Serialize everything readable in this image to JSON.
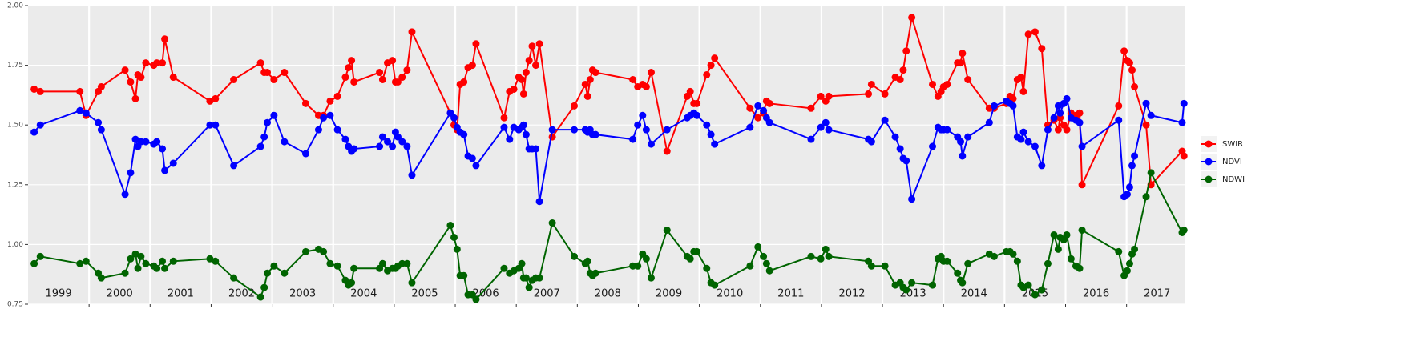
{
  "chart_data": {
    "type": "line",
    "legend_position": "right",
    "grid": true,
    "background": "#ebebeb",
    "xlim": [
      1999.0,
      2017.95
    ],
    "xticks": [
      {
        "value": 1999.5,
        "label": "1999"
      },
      {
        "value": 2000.5,
        "label": "2000"
      },
      {
        "value": 2001.5,
        "label": "2001"
      },
      {
        "value": 2002.5,
        "label": "2002"
      },
      {
        "value": 2003.5,
        "label": "2003"
      },
      {
        "value": 2004.5,
        "label": "2004"
      },
      {
        "value": 2005.5,
        "label": "2005"
      },
      {
        "value": 2006.5,
        "label": "2006"
      },
      {
        "value": 2007.5,
        "label": "2007"
      },
      {
        "value": 2008.5,
        "label": "2008"
      },
      {
        "value": 2009.5,
        "label": "2009"
      },
      {
        "value": 2010.5,
        "label": "2010"
      },
      {
        "value": 2011.5,
        "label": "2011"
      },
      {
        "value": 2012.5,
        "label": "2012"
      },
      {
        "value": 2013.5,
        "label": "2013"
      },
      {
        "value": 2014.5,
        "label": "2014"
      },
      {
        "value": 2015.5,
        "label": "2015"
      },
      {
        "value": 2016.5,
        "label": "2016"
      },
      {
        "value": 2017.5,
        "label": "2017"
      }
    ],
    "xgrid": [
      2000,
      2001,
      2002,
      2003,
      2004,
      2005,
      2006,
      2007,
      2008,
      2009,
      2010,
      2011,
      2012,
      2013,
      2014,
      2015,
      2016,
      2017
    ],
    "ylim": [
      0.75,
      2.0
    ],
    "yticks": [
      {
        "value": 0.75,
        "label": "0.75"
      },
      {
        "value": 1.0,
        "label": "1.00"
      },
      {
        "value": 1.25,
        "label": "1.25"
      },
      {
        "value": 1.5,
        "label": "1.50"
      },
      {
        "value": 1.75,
        "label": "1.75"
      },
      {
        "value": 2.0,
        "label": "2.00"
      }
    ],
    "x": [
      1999.1,
      1999.2,
      1999.85,
      1999.95,
      2000.15,
      2000.2,
      2000.59,
      2000.68,
      2000.76,
      2000.8,
      2000.85,
      2000.93,
      2001.06,
      2001.11,
      2001.2,
      2001.24,
      2001.38,
      2001.98,
      2002.07,
      2002.37,
      2002.81,
      2002.87,
      2002.92,
      2003.03,
      2003.2,
      2003.55,
      2003.76,
      2003.84,
      2003.95,
      2004.07,
      2004.2,
      2004.25,
      2004.3,
      2004.34,
      2004.76,
      2004.81,
      2004.89,
      2004.97,
      2005.02,
      2005.06,
      2005.13,
      2005.21,
      2005.29,
      2005.92,
      2005.98,
      2006.03,
      2006.08,
      2006.14,
      2006.21,
      2006.28,
      2006.34,
      2006.8,
      2006.89,
      2006.96,
      2007.04,
      2007.09,
      2007.12,
      2007.16,
      2007.21,
      2007.26,
      2007.32,
      2007.38,
      2007.59,
      2007.95,
      2008.13,
      2008.17,
      2008.21,
      2008.25,
      2008.3,
      2008.91,
      2008.99,
      2009.07,
      2009.13,
      2009.21,
      2009.47,
      2009.8,
      2009.85,
      2009.91,
      2009.96,
      2010.12,
      2010.19,
      2010.25,
      2010.83,
      2010.96,
      2011.05,
      2011.1,
      2011.15,
      2011.83,
      2011.99,
      2012.07,
      2012.12,
      2012.77,
      2012.82,
      2013.04,
      2013.21,
      2013.29,
      2013.34,
      2013.39,
      2013.48,
      2013.82,
      2013.91,
      2013.96,
      2014.0,
      2014.06,
      2014.23,
      2014.28,
      2014.31,
      2014.4,
      2014.75,
      2014.83,
      2015.03,
      2015.09,
      2015.14,
      2015.21,
      2015.27,
      2015.31,
      2015.39,
      2015.5,
      2015.61,
      2015.71,
      2015.81,
      2015.88,
      2015.91,
      2015.97,
      2016.02,
      2016.09,
      2016.17,
      2016.23,
      2016.27,
      2016.87,
      2016.96,
      2017.01,
      2017.05,
      2017.09,
      2017.13,
      2017.32,
      2017.4,
      2017.91,
      2017.94
    ],
    "series": [
      {
        "name": "SWIR",
        "color": "#ff0000",
        "values": [
          1.65,
          1.64,
          1.64,
          1.54,
          1.64,
          1.66,
          1.73,
          1.68,
          1.61,
          1.71,
          1.7,
          1.76,
          1.75,
          1.76,
          1.76,
          1.86,
          1.7,
          1.6,
          1.61,
          1.69,
          1.76,
          1.72,
          1.72,
          1.69,
          1.72,
          1.59,
          1.54,
          1.54,
          1.6,
          1.62,
          1.7,
          1.74,
          1.77,
          1.68,
          1.72,
          1.69,
          1.76,
          1.77,
          1.68,
          1.68,
          1.7,
          1.73,
          1.89,
          1.55,
          1.5,
          1.48,
          1.67,
          1.68,
          1.74,
          1.75,
          1.84,
          1.53,
          1.64,
          1.65,
          1.7,
          1.69,
          1.63,
          1.72,
          1.77,
          1.83,
          1.75,
          1.84,
          1.45,
          1.58,
          1.67,
          1.62,
          1.69,
          1.73,
          1.72,
          1.69,
          1.66,
          1.67,
          1.66,
          1.72,
          1.39,
          1.62,
          1.64,
          1.59,
          1.59,
          1.71,
          1.75,
          1.78,
          1.57,
          1.53,
          1.55,
          1.6,
          1.59,
          1.57,
          1.62,
          1.6,
          1.62,
          1.63,
          1.67,
          1.63,
          1.7,
          1.69,
          1.73,
          1.81,
          1.95,
          1.67,
          1.62,
          1.64,
          1.66,
          1.67,
          1.76,
          1.76,
          1.8,
          1.69,
          1.57,
          1.57,
          1.59,
          1.62,
          1.61,
          1.69,
          1.7,
          1.64,
          1.88,
          1.89,
          1.82,
          1.5,
          1.52,
          1.48,
          1.53,
          1.5,
          1.48,
          1.55,
          1.54,
          1.55,
          1.25,
          1.58,
          1.81,
          1.77,
          1.76,
          1.73,
          1.66,
          1.5,
          1.25,
          1.39,
          1.37
        ]
      },
      {
        "name": "NDVI",
        "color": "#0000ff",
        "values": [
          1.47,
          1.5,
          1.56,
          1.55,
          1.51,
          1.48,
          1.21,
          1.3,
          1.44,
          1.41,
          1.43,
          1.43,
          1.42,
          1.43,
          1.4,
          1.31,
          1.34,
          1.5,
          1.5,
          1.33,
          1.41,
          1.45,
          1.51,
          1.54,
          1.43,
          1.38,
          1.48,
          1.53,
          1.54,
          1.48,
          1.44,
          1.41,
          1.39,
          1.4,
          1.41,
          1.45,
          1.43,
          1.41,
          1.47,
          1.45,
          1.43,
          1.41,
          1.29,
          1.55,
          1.53,
          1.49,
          1.47,
          1.46,
          1.37,
          1.36,
          1.33,
          1.49,
          1.44,
          1.49,
          1.48,
          1.49,
          1.5,
          1.46,
          1.4,
          1.4,
          1.4,
          1.18,
          1.48,
          1.48,
          1.48,
          1.47,
          1.48,
          1.46,
          1.46,
          1.44,
          1.5,
          1.54,
          1.48,
          1.42,
          1.48,
          1.53,
          1.54,
          1.55,
          1.54,
          1.5,
          1.46,
          1.42,
          1.49,
          1.58,
          1.56,
          1.53,
          1.51,
          1.44,
          1.49,
          1.51,
          1.48,
          1.44,
          1.43,
          1.52,
          1.45,
          1.4,
          1.36,
          1.35,
          1.19,
          1.41,
          1.49,
          1.48,
          1.48,
          1.48,
          1.45,
          1.43,
          1.37,
          1.45,
          1.51,
          1.58,
          1.6,
          1.59,
          1.58,
          1.45,
          1.44,
          1.47,
          1.43,
          1.41,
          1.33,
          1.48,
          1.53,
          1.58,
          1.55,
          1.59,
          1.61,
          1.53,
          1.52,
          1.51,
          1.41,
          1.52,
          1.2,
          1.21,
          1.24,
          1.33,
          1.37,
          1.59,
          1.54,
          1.51,
          1.59
        ]
      },
      {
        "name": "NDWI",
        "color": "#006400",
        "values": [
          0.92,
          0.95,
          0.92,
          0.93,
          0.88,
          0.86,
          0.88,
          0.94,
          0.96,
          0.9,
          0.95,
          0.92,
          0.91,
          0.9,
          0.93,
          0.9,
          0.93,
          0.94,
          0.93,
          0.86,
          0.78,
          0.82,
          0.88,
          0.91,
          0.88,
          0.97,
          0.98,
          0.97,
          0.92,
          0.91,
          0.85,
          0.83,
          0.84,
          0.9,
          0.9,
          0.92,
          0.89,
          0.9,
          0.9,
          0.91,
          0.92,
          0.92,
          0.84,
          1.08,
          1.03,
          0.98,
          0.87,
          0.87,
          0.79,
          0.79,
          0.77,
          0.9,
          0.88,
          0.89,
          0.9,
          0.92,
          0.86,
          0.86,
          0.82,
          0.85,
          0.86,
          0.86,
          1.09,
          0.95,
          0.92,
          0.93,
          0.88,
          0.87,
          0.88,
          0.91,
          0.91,
          0.96,
          0.94,
          0.86,
          1.06,
          0.95,
          0.94,
          0.97,
          0.97,
          0.9,
          0.84,
          0.83,
          0.91,
          0.99,
          0.95,
          0.92,
          0.89,
          0.95,
          0.94,
          0.98,
          0.95,
          0.93,
          0.91,
          0.91,
          0.83,
          0.84,
          0.82,
          0.81,
          0.84,
          0.83,
          0.94,
          0.95,
          0.93,
          0.93,
          0.88,
          0.85,
          0.84,
          0.92,
          0.96,
          0.95,
          0.97,
          0.97,
          0.96,
          0.93,
          0.83,
          0.82,
          0.83,
          0.79,
          0.81,
          0.92,
          1.04,
          0.98,
          1.03,
          1.02,
          1.04,
          0.94,
          0.91,
          0.9,
          1.06,
          0.97,
          0.87,
          0.89,
          0.92,
          0.96,
          0.98,
          1.2,
          1.3,
          1.05,
          1.06
        ]
      }
    ]
  }
}
